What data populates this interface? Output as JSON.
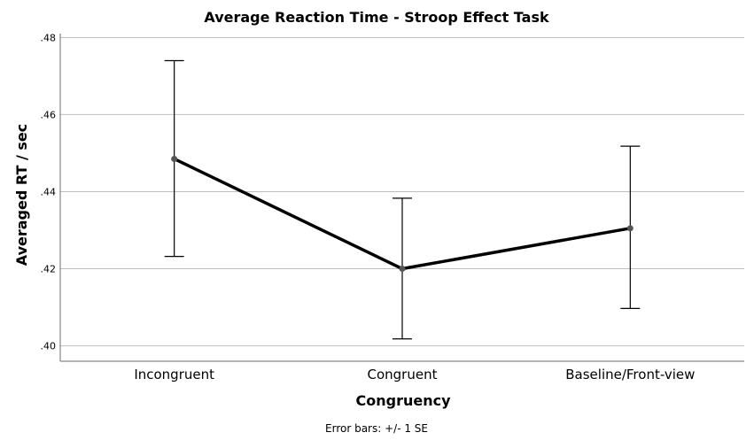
{
  "chart_data": {
    "type": "line",
    "title": "Average Reaction Time - Stroop Effect Task",
    "xlabel": "Congruency",
    "ylabel": "Averaged RT / sec",
    "categories": [
      "Incongruent",
      "Congruent",
      "Baseline/Front-view"
    ],
    "series": [
      {
        "values": [
          0.4485,
          0.42,
          0.4305
        ],
        "error_low": [
          0.4232,
          0.4018,
          0.4097
        ],
        "error_high": [
          0.474,
          0.4383,
          0.4518
        ]
      }
    ],
    "ylim": [
      0.396,
      0.481
    ],
    "yticks": [
      0.4,
      0.42,
      0.44,
      0.46,
      0.48
    ],
    "ytick_labels": [
      ".40",
      ".42",
      ".44",
      ".46",
      ".48"
    ],
    "grid": true,
    "footnote": "Error bars: +/- 1 SE",
    "colors": {
      "line": "#000000",
      "marker": "#555555",
      "grid": "#bdbdbd",
      "axis": "#6e6e6e"
    }
  }
}
